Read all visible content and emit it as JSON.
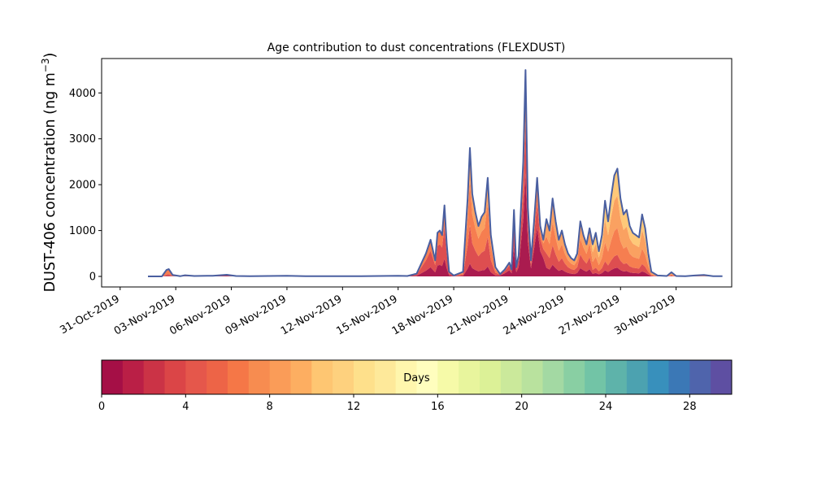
{
  "chart_data": {
    "type": "area",
    "title": "Age contribution to dust concentrations (FLEXDUST)",
    "ylabel_main": "DUST-406 concentration (ng m",
    "ylabel_sup": "−3",
    "ylabel_close": ")",
    "xlabel": "",
    "y_ticks": [
      0,
      1000,
      2000,
      3000,
      4000
    ],
    "ylim": [
      -230,
      4750
    ],
    "x_domain": [
      "2019-10-30",
      "2019-12-03"
    ],
    "x_ticks": [
      {
        "date": "2019-10-31",
        "label": "31-Oct-2019"
      },
      {
        "date": "2019-11-03",
        "label": "03-Nov-2019"
      },
      {
        "date": "2019-11-06",
        "label": "06-Nov-2019"
      },
      {
        "date": "2019-11-09",
        "label": "09-Nov-2019"
      },
      {
        "date": "2019-11-12",
        "label": "12-Nov-2019"
      },
      {
        "date": "2019-11-15",
        "label": "15-Nov-2019"
      },
      {
        "date": "2019-11-18",
        "label": "18-Nov-2019"
      },
      {
        "date": "2019-11-21",
        "label": "21-Nov-2019"
      },
      {
        "date": "2019-11-24",
        "label": "24-Nov-2019"
      },
      {
        "date": "2019-11-27",
        "label": "27-Nov-2019"
      },
      {
        "date": "2019-11-30",
        "label": "30-Nov-2019"
      }
    ],
    "line_color": "#4a5fa0",
    "total": [
      [
        "2019-11-01T12:00",
        0
      ],
      [
        "2019-11-02T06:00",
        0
      ],
      [
        "2019-11-02T12:00",
        140
      ],
      [
        "2019-11-02T15:00",
        160
      ],
      [
        "2019-11-02T20:00",
        30
      ],
      [
        "2019-11-03T06:00",
        5
      ],
      [
        "2019-11-03T12:00",
        25
      ],
      [
        "2019-11-04T00:00",
        10
      ],
      [
        "2019-11-05T00:00",
        15
      ],
      [
        "2019-11-05T18:00",
        35
      ],
      [
        "2019-11-06T06:00",
        10
      ],
      [
        "2019-11-07T00:00",
        5
      ],
      [
        "2019-11-08T00:00",
        10
      ],
      [
        "2019-11-09T00:00",
        15
      ],
      [
        "2019-11-10T00:00",
        5
      ],
      [
        "2019-11-11T00:00",
        5
      ],
      [
        "2019-11-12T00:00",
        5
      ],
      [
        "2019-11-13T00:00",
        5
      ],
      [
        "2019-11-14T00:00",
        10
      ],
      [
        "2019-11-15T00:00",
        15
      ],
      [
        "2019-11-15T12:00",
        10
      ],
      [
        "2019-11-16T00:00",
        60
      ],
      [
        "2019-11-16T12:00",
        500
      ],
      [
        "2019-11-16T18:00",
        800
      ],
      [
        "2019-11-17T00:00",
        350
      ],
      [
        "2019-11-17T03:00",
        950
      ],
      [
        "2019-11-17T06:00",
        1000
      ],
      [
        "2019-11-17T09:00",
        900
      ],
      [
        "2019-11-17T12:00",
        1550
      ],
      [
        "2019-11-17T15:00",
        700
      ],
      [
        "2019-11-17T18:00",
        100
      ],
      [
        "2019-11-18T00:00",
        20
      ],
      [
        "2019-11-18T12:00",
        100
      ],
      [
        "2019-11-18T18:00",
        1700
      ],
      [
        "2019-11-18T21:00",
        2800
      ],
      [
        "2019-11-19T00:00",
        1800
      ],
      [
        "2019-11-19T04:00",
        1400
      ],
      [
        "2019-11-19T08:00",
        1100
      ],
      [
        "2019-11-19T12:00",
        1300
      ],
      [
        "2019-11-19T16:00",
        1400
      ],
      [
        "2019-11-19T20:00",
        2150
      ],
      [
        "2019-11-20T00:00",
        900
      ],
      [
        "2019-11-20T06:00",
        200
      ],
      [
        "2019-11-20T12:00",
        50
      ],
      [
        "2019-11-20T18:00",
        150
      ],
      [
        "2019-11-21T00:00",
        300
      ],
      [
        "2019-11-21T03:00",
        150
      ],
      [
        "2019-11-21T06:00",
        1450
      ],
      [
        "2019-11-21T09:00",
        200
      ],
      [
        "2019-11-21T12:00",
        450
      ],
      [
        "2019-11-21T18:00",
        2500
      ],
      [
        "2019-11-21T21:00",
        4500
      ],
      [
        "2019-11-22T00:00",
        1500
      ],
      [
        "2019-11-22T04:00",
        350
      ],
      [
        "2019-11-22T08:00",
        1200
      ],
      [
        "2019-11-22T12:00",
        2150
      ],
      [
        "2019-11-22T16:00",
        1100
      ],
      [
        "2019-11-22T20:00",
        800
      ],
      [
        "2019-11-23T00:00",
        1250
      ],
      [
        "2019-11-23T04:00",
        1000
      ],
      [
        "2019-11-23T08:00",
        1700
      ],
      [
        "2019-11-23T12:00",
        1200
      ],
      [
        "2019-11-23T16:00",
        800
      ],
      [
        "2019-11-23T20:00",
        1000
      ],
      [
        "2019-11-24T00:00",
        700
      ],
      [
        "2019-11-24T04:00",
        500
      ],
      [
        "2019-11-24T08:00",
        400
      ],
      [
        "2019-11-24T12:00",
        350
      ],
      [
        "2019-11-24T16:00",
        500
      ],
      [
        "2019-11-24T20:00",
        1200
      ],
      [
        "2019-11-25T00:00",
        900
      ],
      [
        "2019-11-25T04:00",
        700
      ],
      [
        "2019-11-25T08:00",
        1050
      ],
      [
        "2019-11-25T12:00",
        700
      ],
      [
        "2019-11-25T16:00",
        950
      ],
      [
        "2019-11-25T20:00",
        550
      ],
      [
        "2019-11-26T00:00",
        900
      ],
      [
        "2019-11-26T04:00",
        1650
      ],
      [
        "2019-11-26T08:00",
        1200
      ],
      [
        "2019-11-26T12:00",
        1750
      ],
      [
        "2019-11-26T16:00",
        2200
      ],
      [
        "2019-11-26T20:00",
        2350
      ],
      [
        "2019-11-27T00:00",
        1700
      ],
      [
        "2019-11-27T04:00",
        1350
      ],
      [
        "2019-11-27T08:00",
        1450
      ],
      [
        "2019-11-27T12:00",
        1100
      ],
      [
        "2019-11-27T16:00",
        950
      ],
      [
        "2019-11-27T20:00",
        900
      ],
      [
        "2019-11-28T00:00",
        850
      ],
      [
        "2019-11-28T04:00",
        1350
      ],
      [
        "2019-11-28T08:00",
        1050
      ],
      [
        "2019-11-28T12:00",
        500
      ],
      [
        "2019-11-28T16:00",
        100
      ],
      [
        "2019-11-29T00:00",
        20
      ],
      [
        "2019-11-29T12:00",
        10
      ],
      [
        "2019-11-29T18:00",
        90
      ],
      [
        "2019-11-30T00:00",
        10
      ],
      [
        "2019-11-30T12:00",
        5
      ],
      [
        "2019-12-01T00:00",
        20
      ],
      [
        "2019-12-01T12:00",
        30
      ],
      [
        "2019-12-02T00:00",
        5
      ],
      [
        "2019-12-02T12:00",
        5
      ]
    ],
    "colorbar": {
      "label": "Days",
      "ticks": [
        0,
        4,
        8,
        12,
        16,
        20,
        24,
        28
      ],
      "range": [
        0,
        30
      ],
      "colors": [
        "#a50f46",
        "#ba1f46",
        "#cb3346",
        "#db4547",
        "#e5574b",
        "#ed6447",
        "#f57747",
        "#f78c50",
        "#fa9c58",
        "#fdae61",
        "#fec672",
        "#fed17e",
        "#fee08b",
        "#fee99a",
        "#fff6ad",
        "#fffebe",
        "#f6faa8",
        "#e8f59d",
        "#dcf197",
        "#cbe99b",
        "#b9e29e",
        "#a3d9a3",
        "#89cfa3",
        "#72c4a6",
        "#5eb3aa",
        "#4ca2b0",
        "#3890bc",
        "#3b78b6",
        "#4f64ac",
        "#5e4fa2"
      ]
    }
  }
}
